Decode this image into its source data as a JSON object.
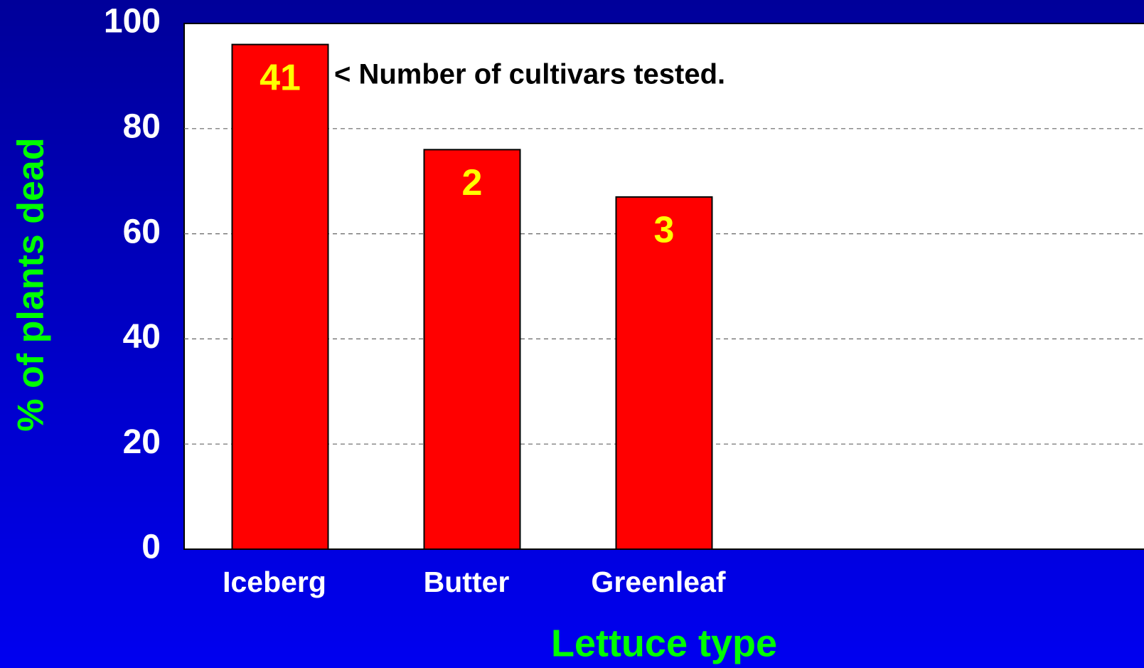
{
  "chart_data": {
    "type": "bar",
    "x_label": "Lettuce type",
    "y_label": "% of plants dead",
    "annotation": "< Number of cultivars tested.",
    "categories": [
      "Iceberg",
      "Butter",
      "Greenleaf",
      null,
      null
    ],
    "values": [
      96,
      76,
      67,
      0,
      0
    ],
    "bar_labels": [
      41,
      2,
      3,
      null,
      null
    ],
    "color": "#ff0000",
    "ylim": [
      0,
      100
    ],
    "yticks": [
      0,
      20,
      40,
      60,
      80,
      100
    ],
    "grid": true
  }
}
